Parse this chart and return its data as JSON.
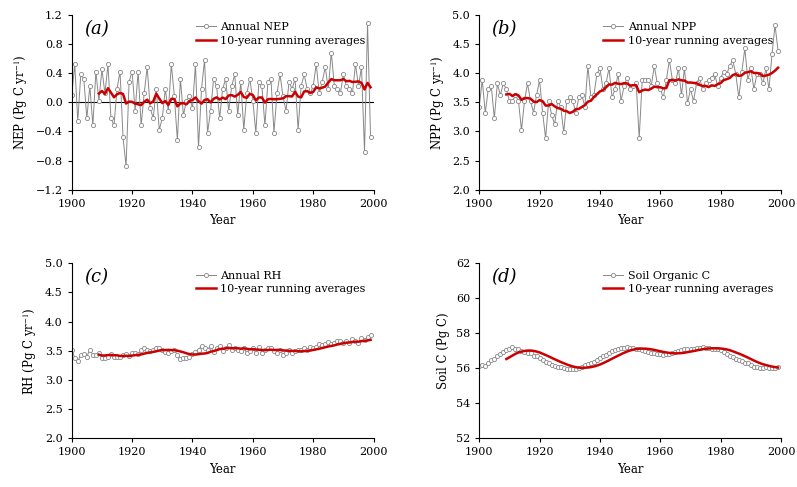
{
  "years": [
    1900,
    1901,
    1902,
    1903,
    1904,
    1905,
    1906,
    1907,
    1908,
    1909,
    1910,
    1911,
    1912,
    1913,
    1914,
    1915,
    1916,
    1917,
    1918,
    1919,
    1920,
    1921,
    1922,
    1923,
    1924,
    1925,
    1926,
    1927,
    1928,
    1929,
    1930,
    1931,
    1932,
    1933,
    1934,
    1935,
    1936,
    1937,
    1938,
    1939,
    1940,
    1941,
    1942,
    1943,
    1944,
    1945,
    1946,
    1947,
    1948,
    1949,
    1950,
    1951,
    1952,
    1953,
    1954,
    1955,
    1956,
    1957,
    1958,
    1959,
    1960,
    1961,
    1962,
    1963,
    1964,
    1965,
    1966,
    1967,
    1968,
    1969,
    1970,
    1971,
    1972,
    1973,
    1974,
    1975,
    1976,
    1977,
    1978,
    1979,
    1980,
    1981,
    1982,
    1983,
    1984,
    1985,
    1986,
    1987,
    1988,
    1989,
    1990,
    1991,
    1992,
    1993,
    1994,
    1995,
    1996,
    1997,
    1998,
    1999
  ],
  "nep": [
    0.1,
    0.52,
    -0.26,
    0.38,
    0.32,
    -0.22,
    0.22,
    -0.32,
    0.42,
    0.02,
    0.45,
    0.12,
    0.52,
    -0.22,
    -0.32,
    0.18,
    0.42,
    -0.48,
    -0.88,
    0.28,
    0.42,
    -0.12,
    0.42,
    -0.32,
    0.12,
    0.48,
    -0.08,
    -0.22,
    0.18,
    -0.38,
    -0.22,
    0.18,
    -0.12,
    0.52,
    0.08,
    -0.52,
    0.32,
    -0.18,
    0.02,
    0.08,
    -0.08,
    0.52,
    -0.62,
    0.18,
    0.58,
    -0.42,
    -0.12,
    0.32,
    0.22,
    -0.22,
    0.18,
    0.32,
    -0.12,
    0.22,
    0.38,
    -0.18,
    0.28,
    -0.38,
    0.12,
    0.32,
    0.02,
    -0.42,
    0.28,
    0.22,
    -0.32,
    0.28,
    0.32,
    -0.42,
    0.12,
    0.38,
    0.08,
    -0.12,
    0.28,
    0.18,
    0.32,
    -0.38,
    0.22,
    0.38,
    0.18,
    0.12,
    0.22,
    0.52,
    0.12,
    0.28,
    0.48,
    0.18,
    0.68,
    0.22,
    0.18,
    0.12,
    0.38,
    0.22,
    0.18,
    0.12,
    0.52,
    0.22,
    0.48,
    -0.68,
    1.08,
    -0.48
  ],
  "npp": [
    3.42,
    3.88,
    3.32,
    3.72,
    3.78,
    3.22,
    3.82,
    3.62,
    3.82,
    3.72,
    3.52,
    3.52,
    3.62,
    3.52,
    3.02,
    3.52,
    3.82,
    3.52,
    3.32,
    3.62,
    3.88,
    3.32,
    2.88,
    3.52,
    3.28,
    3.12,
    3.52,
    3.42,
    2.98,
    3.52,
    3.58,
    3.52,
    3.32,
    3.58,
    3.62,
    3.42,
    4.12,
    3.58,
    3.62,
    3.98,
    4.08,
    3.72,
    3.82,
    4.08,
    3.58,
    3.72,
    3.98,
    3.52,
    3.78,
    3.92,
    3.72,
    3.78,
    3.82,
    2.88,
    3.88,
    3.88,
    3.88,
    3.78,
    4.12,
    3.82,
    3.72,
    3.58,
    3.88,
    4.22,
    3.88,
    3.82,
    4.08,
    3.62,
    4.08,
    3.48,
    3.72,
    3.52,
    3.82,
    3.92,
    3.72,
    3.82,
    3.88,
    3.92,
    3.98,
    3.78,
    3.92,
    4.02,
    3.98,
    4.12,
    4.22,
    3.98,
    3.58,
    4.02,
    4.42,
    3.88,
    4.08,
    3.72,
    3.98,
    3.98,
    3.82,
    4.08,
    3.72,
    4.32,
    4.82,
    4.38
  ],
  "rh": [
    3.52,
    3.38,
    3.33,
    3.42,
    3.45,
    3.4,
    3.52,
    3.43,
    3.42,
    3.46,
    3.38,
    3.38,
    3.4,
    3.44,
    3.4,
    3.4,
    3.4,
    3.43,
    3.45,
    3.41,
    3.46,
    3.46,
    3.44,
    3.52,
    3.54,
    3.52,
    3.49,
    3.52,
    3.55,
    3.54,
    3.52,
    3.48,
    3.47,
    3.49,
    3.52,
    3.43,
    3.36,
    3.38,
    3.38,
    3.4,
    3.45,
    3.48,
    3.52,
    3.58,
    3.55,
    3.52,
    3.58,
    3.48,
    3.55,
    3.58,
    3.5,
    3.55,
    3.6,
    3.52,
    3.55,
    3.52,
    3.5,
    3.55,
    3.46,
    3.5,
    3.54,
    3.47,
    3.57,
    3.47,
    3.52,
    3.55,
    3.55,
    3.5,
    3.47,
    3.52,
    3.43,
    3.46,
    3.52,
    3.46,
    3.5,
    3.52,
    3.52,
    3.54,
    3.52,
    3.56,
    3.54,
    3.56,
    3.62,
    3.6,
    3.62,
    3.65,
    3.62,
    3.64,
    3.67,
    3.67,
    3.63,
    3.67,
    3.64,
    3.7,
    3.67,
    3.64,
    3.72,
    3.69,
    3.74,
    3.77
  ],
  "soc": [
    56.12,
    56.2,
    56.15,
    56.32,
    56.48,
    56.55,
    56.68,
    56.82,
    56.92,
    57.05,
    57.1,
    57.2,
    57.12,
    57.08,
    56.98,
    56.95,
    56.88,
    56.85,
    56.72,
    56.68,
    56.58,
    56.48,
    56.38,
    56.28,
    56.18,
    56.12,
    56.1,
    56.08,
    56.02,
    55.98,
    55.96,
    55.95,
    55.95,
    56.02,
    56.08,
    56.18,
    56.22,
    56.3,
    56.38,
    56.48,
    56.58,
    56.68,
    56.78,
    56.88,
    56.98,
    57.05,
    57.08,
    57.15,
    57.18,
    57.2,
    57.18,
    57.15,
    57.12,
    57.08,
    57.05,
    57.0,
    56.95,
    56.9,
    56.85,
    56.82,
    56.8,
    56.78,
    56.8,
    56.82,
    56.88,
    56.92,
    56.98,
    57.02,
    57.08,
    57.12,
    57.12,
    57.1,
    57.15,
    57.18,
    57.2,
    57.18,
    57.15,
    57.12,
    57.1,
    57.08,
    57.02,
    56.92,
    56.82,
    56.72,
    56.62,
    56.52,
    56.48,
    56.4,
    56.32,
    56.28,
    56.18,
    56.08,
    56.05,
    56.0,
    56.0,
    56.05,
    56.02,
    56.0,
    56.0,
    56.05
  ],
  "ylabel_a": "NEP (Pg C yr$^{-1}$)",
  "ylabel_b": "NPP (Pg C yr$^{-1}$)",
  "ylabel_c": "RH (Pg C yr$^{-1}$)",
  "ylabel_d": "Soil C (Pg C)",
  "xlabel": "Year",
  "legend_annual_a": "Annual NEP",
  "legend_annual_b": "Annual NPP",
  "legend_annual_c": "Annual RH",
  "legend_annual_d": "Soil Organic C",
  "legend_running": "10-year running averages",
  "ylim_a": [
    -1.2,
    1.2
  ],
  "ylim_b": [
    2.0,
    5.0
  ],
  "ylim_c": [
    2.0,
    5.0
  ],
  "ylim_d": [
    52.0,
    62.0
  ],
  "yticks_a": [
    -1.2,
    -0.8,
    -0.4,
    0.0,
    0.4,
    0.8,
    1.2
  ],
  "yticks_b": [
    2.0,
    2.5,
    3.0,
    3.5,
    4.0,
    4.5,
    5.0
  ],
  "yticks_c": [
    2.0,
    2.5,
    3.0,
    3.5,
    4.0,
    4.5,
    5.0
  ],
  "yticks_d": [
    52.0,
    54.0,
    56.0,
    58.0,
    60.0,
    62.0
  ],
  "xticks": [
    1900,
    1920,
    1940,
    1960,
    1980,
    2000
  ],
  "line_color": "#888888",
  "running_color": "#cc0000",
  "marker": "o",
  "markersize": 3.0,
  "linewidth_annual": 0.7,
  "linewidth_running": 1.8,
  "panel_labels": [
    "(a)",
    "(b)",
    "(c)",
    "(d)"
  ],
  "panel_fontsize": 13,
  "label_fontsize": 8.5,
  "tick_fontsize": 8.0,
  "legend_fontsize": 8.0
}
